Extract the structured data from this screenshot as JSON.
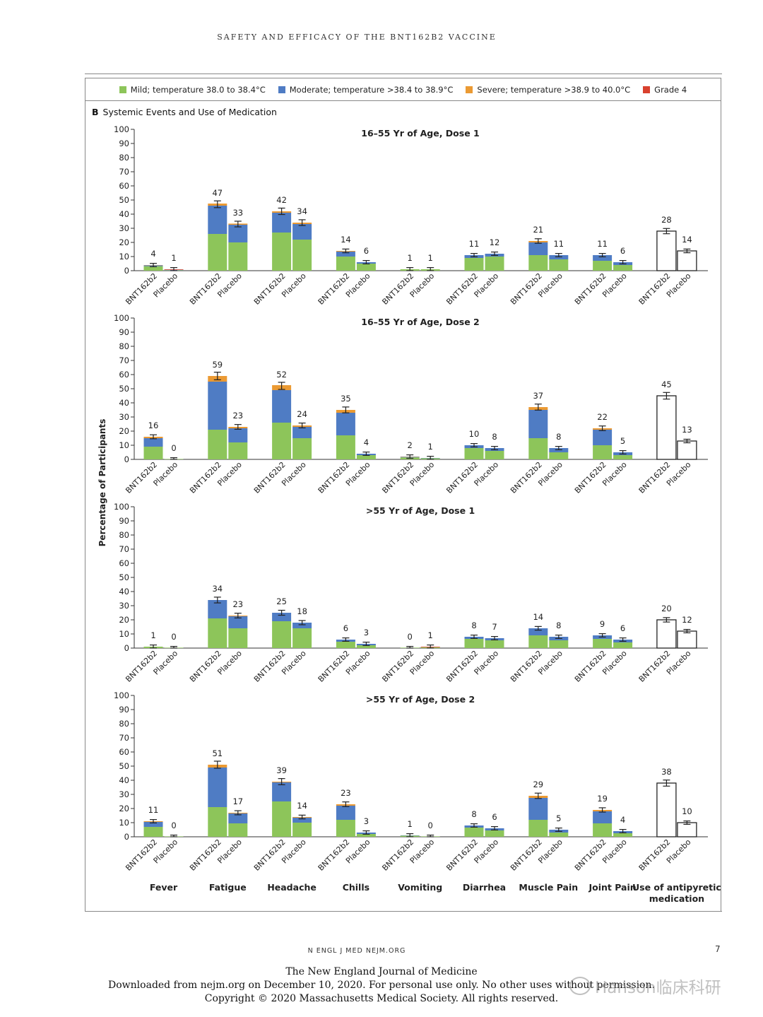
{
  "running_head": "SAFETY AND EFFICACY OF THE BNT162B2 VACCINE",
  "legend": [
    {
      "label": "Mild; temperature 38.0 to 38.4°C",
      "color": "#8dc55a"
    },
    {
      "label": "Moderate; temperature >38.4 to 38.9°C",
      "color": "#4f7cc4"
    },
    {
      "label": "Severe; temperature >38.9 to 40.0°C",
      "color": "#eb9a33"
    },
    {
      "label": "Grade 4",
      "color": "#d9412e"
    }
  ],
  "panel": {
    "letter": "B",
    "title": "Systemic Events and Use of Medication"
  },
  "footer": {
    "journal_abbrev": "N ENGL J MED    NEJM.ORG",
    "page_number": "7",
    "line1": "The New England Journal of Medicine",
    "line2": "Downloaded from nejm.org on December 10, 2020. For personal use only. No other uses without permission.",
    "line3": "Copyright © 2020 Massachusetts Medical Society. All rights reserved.",
    "watermark": "Hanson临床科研"
  },
  "chart_data": {
    "type": "bar",
    "ylabel": "Percentage of Participants",
    "ylim": [
      0,
      100
    ],
    "yticks": [
      0,
      10,
      20,
      30,
      40,
      50,
      60,
      70,
      80,
      90,
      100
    ],
    "groups": [
      "BNT162b2",
      "Placebo"
    ],
    "categories": [
      "Fever",
      "Fatigue",
      "Headache",
      "Chills",
      "Vomiting",
      "Diarrhea",
      "Muscle Pain",
      "Joint Pain",
      "Use of antipyretic medication"
    ],
    "panels": [
      {
        "title": "16–55 Yr of Age, Dose 1",
        "bars": [
          [
            {
              "total": 4,
              "mild": 3.2,
              "moderate": 0.6,
              "severe": 0.2,
              "grade4": 0
            },
            {
              "total": 1,
              "mild": 0.3,
              "moderate": 0.3,
              "severe": 0,
              "grade4": 0.4
            }
          ],
          [
            {
              "total": 47,
              "mild": 26,
              "moderate": 20,
              "severe": 1.5,
              "grade4": 0
            },
            {
              "total": 33,
              "mild": 20,
              "moderate": 12.5,
              "severe": 0.8,
              "grade4": 0
            }
          ],
          [
            {
              "total": 42,
              "mild": 27,
              "moderate": 14,
              "severe": 1,
              "grade4": 0
            },
            {
              "total": 34,
              "mild": 22,
              "moderate": 11,
              "severe": 1,
              "grade4": 0
            }
          ],
          [
            {
              "total": 14,
              "mild": 10,
              "moderate": 3.5,
              "severe": 0.5,
              "grade4": 0
            },
            {
              "total": 6,
              "mild": 5,
              "moderate": 1,
              "severe": 0,
              "grade4": 0
            }
          ],
          [
            {
              "total": 1,
              "mild": 1,
              "moderate": 0,
              "severe": 0,
              "grade4": 0
            },
            {
              "total": 1,
              "mild": 1,
              "moderate": 0,
              "severe": 0,
              "grade4": 0
            }
          ],
          [
            {
              "total": 11,
              "mild": 9,
              "moderate": 2,
              "severe": 0,
              "grade4": 0
            },
            {
              "total": 12,
              "mild": 10,
              "moderate": 2,
              "severe": 0,
              "grade4": 0
            }
          ],
          [
            {
              "total": 21,
              "mild": 11,
              "moderate": 9,
              "severe": 1,
              "grade4": 0
            },
            {
              "total": 11,
              "mild": 8,
              "moderate": 3,
              "severe": 0,
              "grade4": 0
            }
          ],
          [
            {
              "total": 11,
              "mild": 7,
              "moderate": 4,
              "severe": 0,
              "grade4": 0
            },
            {
              "total": 6,
              "mild": 4,
              "moderate": 2,
              "severe": 0,
              "grade4": 0
            }
          ],
          [
            {
              "total": 28,
              "outline": true
            },
            {
              "total": 14,
              "outline": true
            }
          ]
        ]
      },
      {
        "title": "16–55 Yr of Age, Dose 2",
        "bars": [
          [
            {
              "total": 16,
              "mild": 9,
              "moderate": 6,
              "severe": 1,
              "grade4": 0
            },
            {
              "total": 0,
              "mild": 0.3,
              "moderate": 0,
              "severe": 0,
              "grade4": 0
            }
          ],
          [
            {
              "total": 59,
              "mild": 21,
              "moderate": 34,
              "severe": 4,
              "grade4": 0
            },
            {
              "total": 23,
              "mild": 12,
              "moderate": 10,
              "severe": 1,
              "grade4": 0
            }
          ],
          [
            {
              "total": 52,
              "mild": 26,
              "moderate": 23,
              "severe": 3.5,
              "grade4": 0
            },
            {
              "total": 24,
              "mild": 15,
              "moderate": 8,
              "severe": 1,
              "grade4": 0
            }
          ],
          [
            {
              "total": 35,
              "mild": 17,
              "moderate": 16,
              "severe": 2,
              "grade4": 0
            },
            {
              "total": 4,
              "mild": 3,
              "moderate": 1,
              "severe": 0,
              "grade4": 0
            }
          ],
          [
            {
              "total": 2,
              "mild": 1.4,
              "moderate": 0.4,
              "severe": 0.2,
              "grade4": 0
            },
            {
              "total": 1,
              "mild": 0.8,
              "moderate": 0.2,
              "severe": 0,
              "grade4": 0
            }
          ],
          [
            {
              "total": 10,
              "mild": 8,
              "moderate": 2,
              "severe": 0,
              "grade4": 0
            },
            {
              "total": 8,
              "mild": 6,
              "moderate": 2,
              "severe": 0,
              "grade4": 0
            }
          ],
          [
            {
              "total": 37,
              "mild": 15,
              "moderate": 20,
              "severe": 2,
              "grade4": 0
            },
            {
              "total": 8,
              "mild": 5,
              "moderate": 3,
              "severe": 0,
              "grade4": 0
            }
          ],
          [
            {
              "total": 22,
              "mild": 10,
              "moderate": 11,
              "severe": 1,
              "grade4": 0
            },
            {
              "total": 5,
              "mild": 3,
              "moderate": 2,
              "severe": 0,
              "grade4": 0
            }
          ],
          [
            {
              "total": 45,
              "outline": true
            },
            {
              "total": 13,
              "outline": true
            }
          ]
        ]
      },
      {
        "title": ">55 Yr of Age, Dose 1",
        "bars": [
          [
            {
              "total": 1,
              "mild": 1,
              "moderate": 0,
              "severe": 0,
              "grade4": 0
            },
            {
              "total": 0,
              "mild": 0.3,
              "moderate": 0,
              "severe": 0,
              "grade4": 0
            }
          ],
          [
            {
              "total": 34,
              "mild": 21,
              "moderate": 13,
              "severe": 0,
              "grade4": 0
            },
            {
              "total": 23,
              "mild": 14,
              "moderate": 8.5,
              "severe": 0.5,
              "grade4": 0
            }
          ],
          [
            {
              "total": 25,
              "mild": 19,
              "moderate": 6,
              "severe": 0,
              "grade4": 0
            },
            {
              "total": 18,
              "mild": 14,
              "moderate": 4,
              "severe": 0,
              "grade4": 0
            }
          ],
          [
            {
              "total": 6,
              "mild": 4.5,
              "moderate": 1.5,
              "severe": 0,
              "grade4": 0
            },
            {
              "total": 3,
              "mild": 2,
              "moderate": 1,
              "severe": 0,
              "grade4": 0
            }
          ],
          [
            {
              "total": 0,
              "mild": 0.3,
              "moderate": 0,
              "severe": 0,
              "grade4": 0
            },
            {
              "total": 1,
              "mild": 0.6,
              "moderate": 0,
              "severe": 0,
              "grade4": 0.4
            }
          ],
          [
            {
              "total": 8,
              "mild": 6.5,
              "moderate": 1.5,
              "severe": 0,
              "grade4": 0
            },
            {
              "total": 7,
              "mild": 5.5,
              "moderate": 1.5,
              "severe": 0,
              "grade4": 0
            }
          ],
          [
            {
              "total": 14,
              "mild": 9,
              "moderate": 5,
              "severe": 0,
              "grade4": 0
            },
            {
              "total": 8,
              "mild": 5.5,
              "moderate": 2.5,
              "severe": 0,
              "grade4": 0
            }
          ],
          [
            {
              "total": 9,
              "mild": 6.5,
              "moderate": 2.5,
              "severe": 0,
              "grade4": 0
            },
            {
              "total": 6,
              "mild": 4,
              "moderate": 2,
              "severe": 0,
              "grade4": 0
            }
          ],
          [
            {
              "total": 20,
              "outline": true
            },
            {
              "total": 12,
              "outline": true
            }
          ]
        ]
      },
      {
        "title": ">55 Yr of Age, Dose 2",
        "bars": [
          [
            {
              "total": 11,
              "mild": 7,
              "moderate": 3.5,
              "severe": 0.5,
              "grade4": 0
            },
            {
              "total": 0,
              "mild": 0.3,
              "moderate": 0,
              "severe": 0,
              "grade4": 0
            }
          ],
          [
            {
              "total": 51,
              "mild": 21,
              "moderate": 28,
              "severe": 2,
              "grade4": 0
            },
            {
              "total": 17,
              "mild": 9.5,
              "moderate": 7,
              "severe": 0.5,
              "grade4": 0
            }
          ],
          [
            {
              "total": 39,
              "mild": 25,
              "moderate": 13.5,
              "severe": 0.5,
              "grade4": 0
            },
            {
              "total": 14,
              "mild": 10,
              "moderate": 3.5,
              "severe": 0.5,
              "grade4": 0
            }
          ],
          [
            {
              "total": 23,
              "mild": 12,
              "moderate": 10,
              "severe": 1,
              "grade4": 0
            },
            {
              "total": 3,
              "mild": 2,
              "moderate": 1,
              "severe": 0,
              "grade4": 0
            }
          ],
          [
            {
              "total": 1,
              "mild": 0.8,
              "moderate": 0.2,
              "severe": 0,
              "grade4": 0
            },
            {
              "total": 0,
              "mild": 0.3,
              "moderate": 0,
              "severe": 0,
              "grade4": 0
            }
          ],
          [
            {
              "total": 8,
              "mild": 6.5,
              "moderate": 1.5,
              "severe": 0,
              "grade4": 0
            },
            {
              "total": 6,
              "mild": 4.5,
              "moderate": 1.5,
              "severe": 0,
              "grade4": 0
            }
          ],
          [
            {
              "total": 29,
              "mild": 12,
              "moderate": 15.5,
              "severe": 1.5,
              "grade4": 0
            },
            {
              "total": 5,
              "mild": 3,
              "moderate": 2,
              "severe": 0,
              "grade4": 0
            }
          ],
          [
            {
              "total": 19,
              "mild": 9.5,
              "moderate": 8.5,
              "severe": 1,
              "grade4": 0
            },
            {
              "total": 4,
              "mild": 2.5,
              "moderate": 1.5,
              "severe": 0,
              "grade4": 0
            }
          ],
          [
            {
              "total": 38,
              "outline": true
            },
            {
              "total": 10,
              "outline": true
            }
          ]
        ]
      }
    ]
  }
}
